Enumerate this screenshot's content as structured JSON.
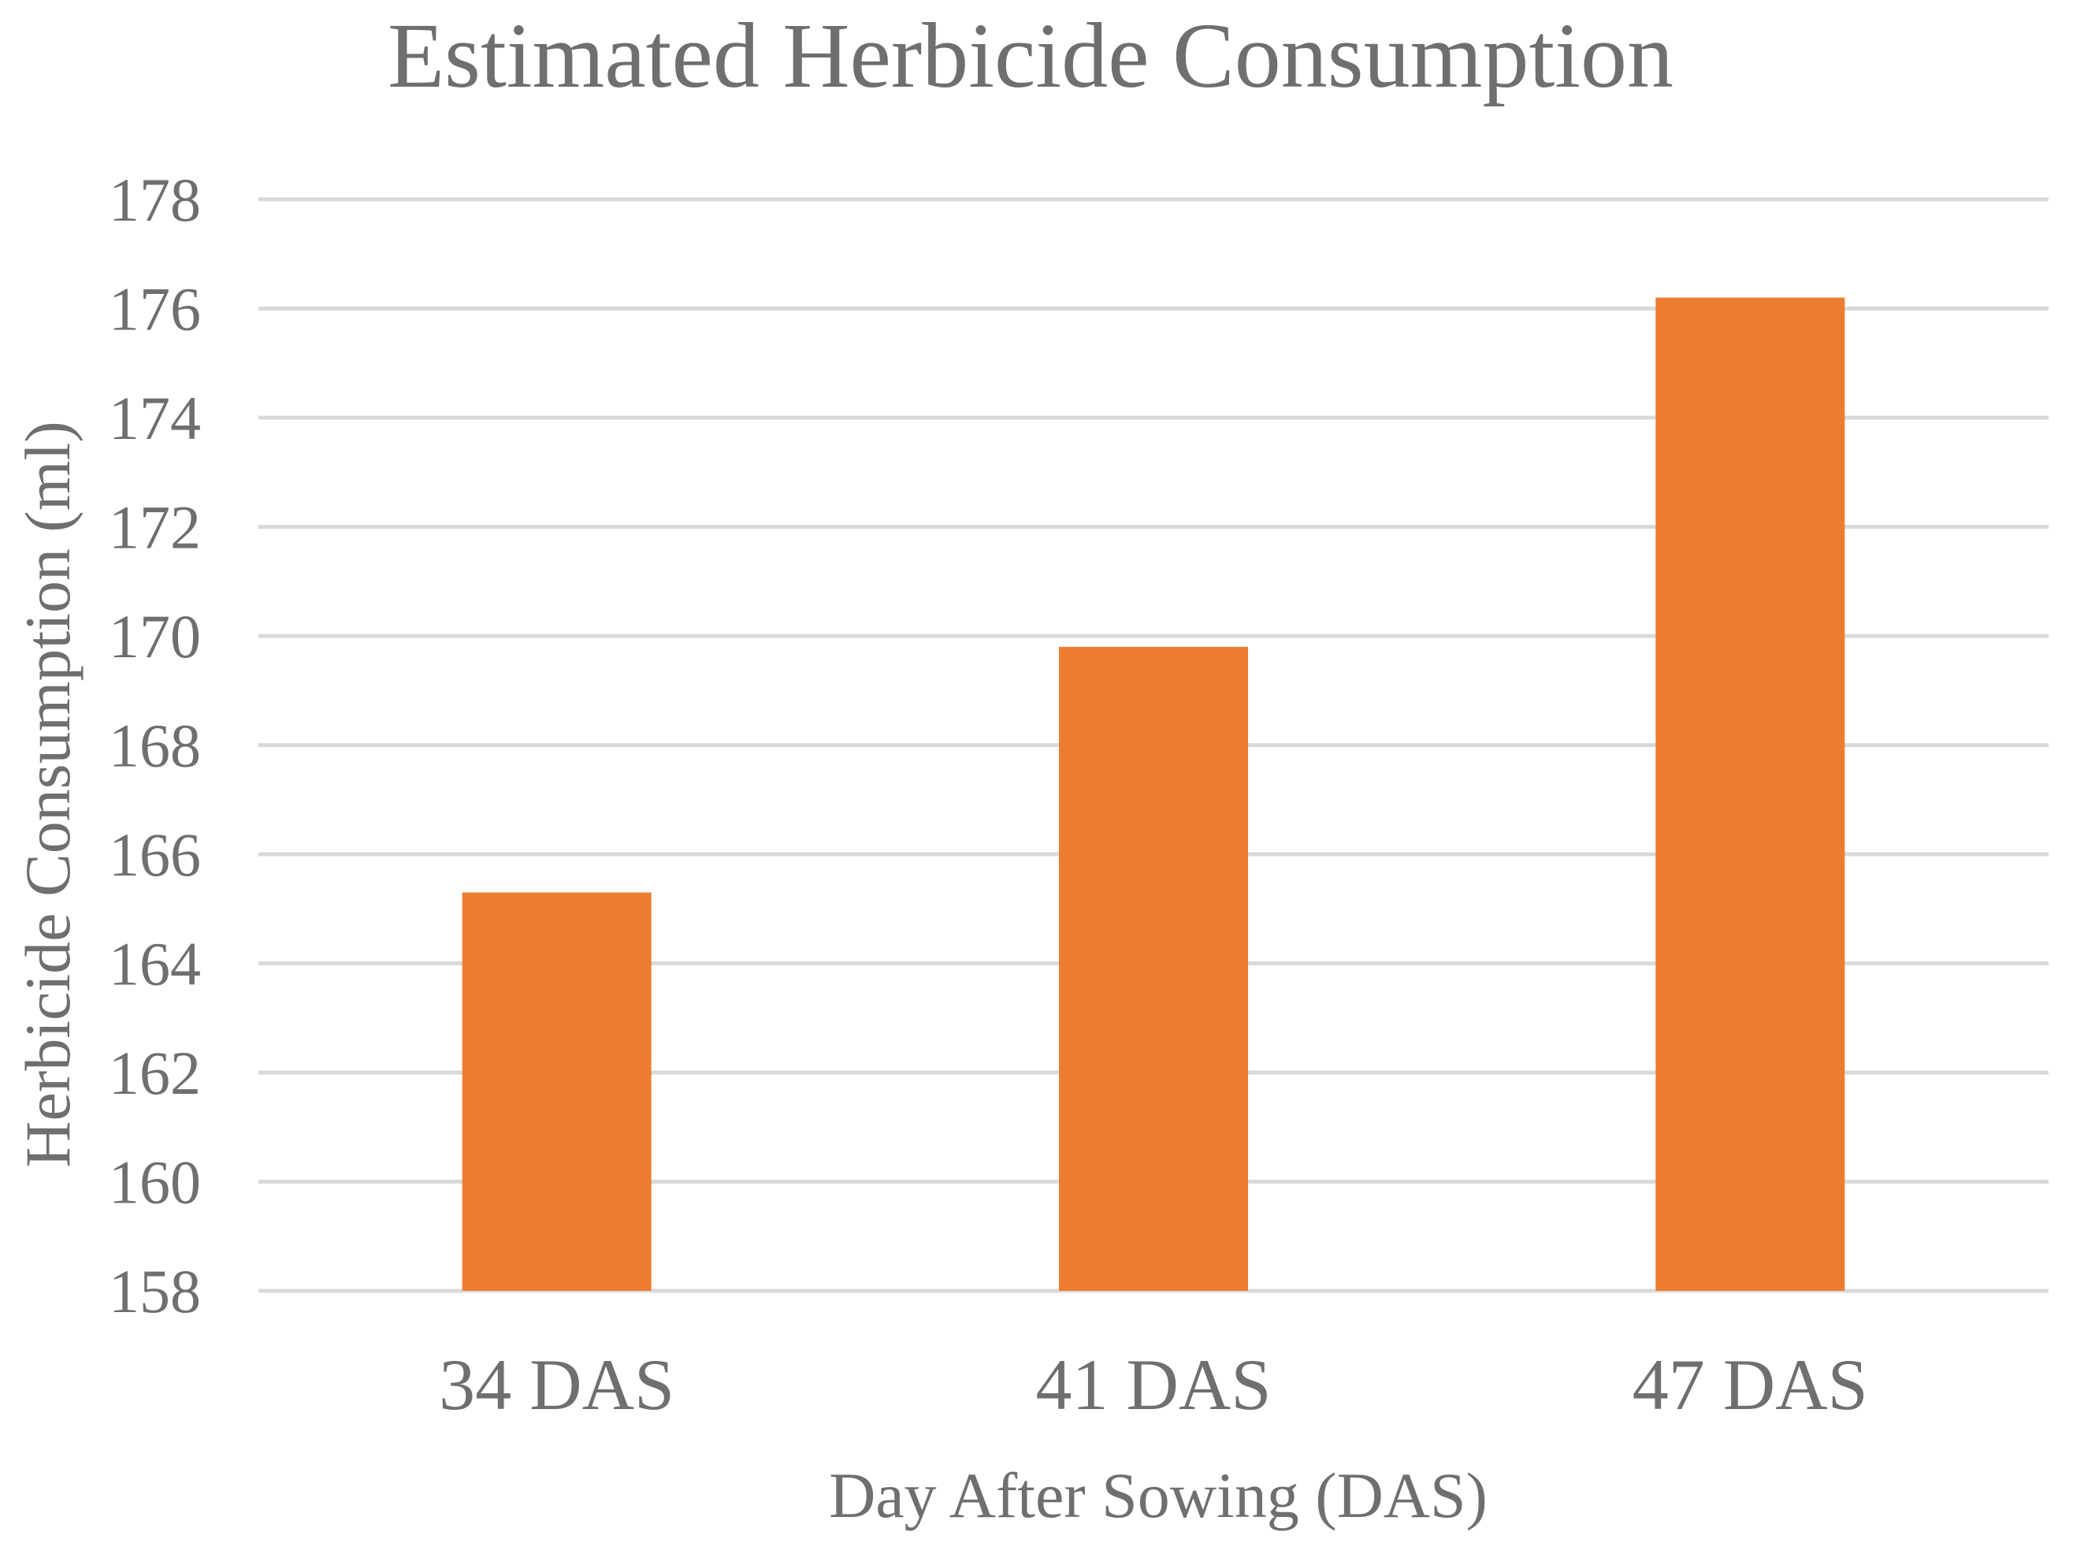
{
  "chart_data": {
    "type": "bar",
    "title": "Estimated Herbicide Consumption",
    "xlabel": "Day After Sowing (DAS)",
    "ylabel": "Herbicide Consumption (ml)",
    "categories": [
      "34 DAS",
      "41 DAS",
      "47 DAS"
    ],
    "values": [
      165.3,
      169.8,
      176.2
    ],
    "ylim": [
      158,
      178
    ],
    "yticks": [
      158,
      160,
      162,
      164,
      166,
      168,
      170,
      172,
      174,
      176,
      178
    ],
    "grid": true,
    "legend": "none",
    "bar_color": "#ed7d31"
  }
}
